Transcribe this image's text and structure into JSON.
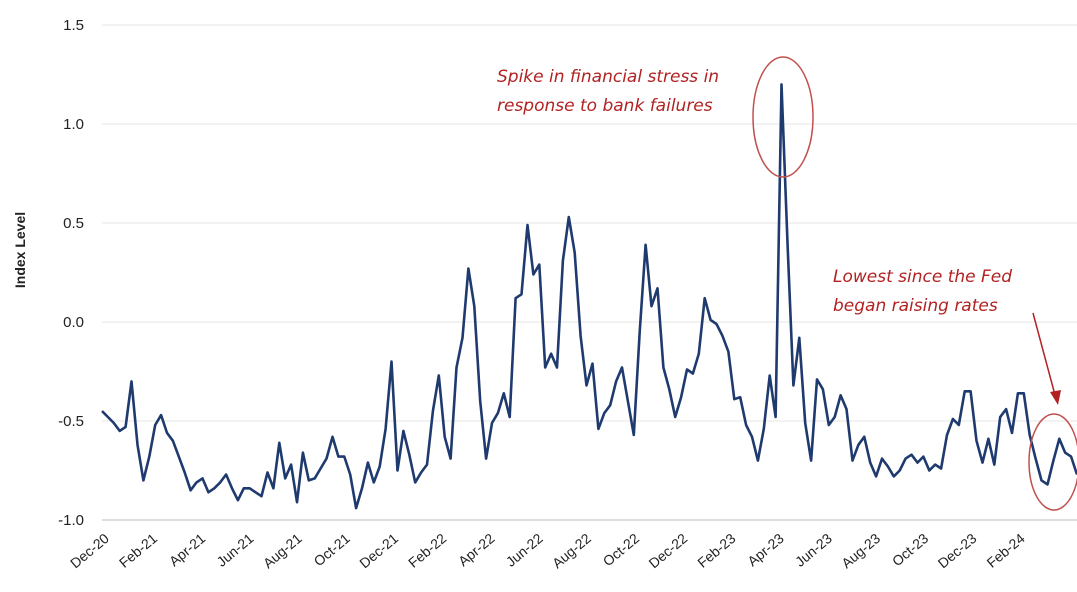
{
  "chart_data": {
    "type": "line",
    "title": "",
    "xlabel": "",
    "ylabel": "Index Level",
    "ylim": [
      -1.0,
      1.5
    ],
    "yticks": [
      "1.5",
      "1.0",
      "0.5",
      "0.0",
      "-0.5",
      "-1.0"
    ],
    "ytick_values": [
      1.5,
      1.0,
      0.5,
      0.0,
      -0.5,
      -1.0
    ],
    "xticks": [
      "Dec-20",
      "Feb-21",
      "Apr-21",
      "Jun-21",
      "Aug-21",
      "Oct-21",
      "Dec-21",
      "Feb-22",
      "Apr-22",
      "Jun-22",
      "Aug-22",
      "Oct-22",
      "Dec-22",
      "Feb-23",
      "Apr-23",
      "Jun-23",
      "Aug-23",
      "Oct-23",
      "Dec-23",
      "Feb-24"
    ],
    "grid": true,
    "line_color": "#1f3a6e",
    "annotation_color": "#b22222",
    "series": [
      {
        "values": [
          -0.45,
          -0.48,
          -0.51,
          -0.55,
          -0.53,
          -0.3,
          -0.62,
          -0.8,
          -0.68,
          -0.52,
          -0.47,
          -0.56,
          -0.6,
          -0.68,
          -0.76,
          -0.85,
          -0.81,
          -0.79,
          -0.86,
          -0.84,
          -0.81,
          -0.77,
          -0.84,
          -0.9,
          -0.84,
          -0.84,
          -0.86,
          -0.88,
          -0.76,
          -0.84,
          -0.61,
          -0.79,
          -0.72,
          -0.91,
          -0.66,
          -0.8,
          -0.79,
          -0.74,
          -0.69,
          -0.58,
          -0.68,
          -0.68,
          -0.77,
          -0.94,
          -0.84,
          -0.71,
          -0.81,
          -0.73,
          -0.54,
          -0.2,
          -0.75,
          -0.55,
          -0.67,
          -0.81,
          -0.76,
          -0.72,
          -0.45,
          -0.27,
          -0.58,
          -0.69,
          -0.23,
          -0.08,
          0.27,
          0.08,
          -0.4,
          -0.69,
          -0.51,
          -0.46,
          -0.36,
          -0.48,
          0.12,
          0.14,
          0.49,
          0.24,
          0.29,
          -0.23,
          -0.16,
          -0.23,
          0.31,
          0.53,
          0.35,
          -0.07,
          -0.32,
          -0.21,
          -0.54,
          -0.46,
          -0.42,
          -0.3,
          -0.23,
          -0.4,
          -0.57,
          -0.05,
          0.39,
          0.08,
          0.17,
          -0.23,
          -0.34,
          -0.48,
          -0.38,
          -0.24,
          -0.26,
          -0.16,
          0.12,
          0.01,
          -0.01,
          -0.07,
          -0.15,
          -0.39,
          -0.38,
          -0.52,
          -0.58,
          -0.7,
          -0.54,
          -0.27,
          -0.48,
          1.2,
          0.4,
          -0.32,
          -0.08,
          -0.51,
          -0.7,
          -0.29,
          -0.34,
          -0.52,
          -0.48,
          -0.37,
          -0.44,
          -0.7,
          -0.62,
          -0.58,
          -0.71,
          -0.78,
          -0.69,
          -0.73,
          -0.78,
          -0.75,
          -0.69,
          -0.67,
          -0.71,
          -0.68,
          -0.75,
          -0.72,
          -0.74,
          -0.57,
          -0.49,
          -0.52,
          -0.35,
          -0.35,
          -0.6,
          -0.71,
          -0.59,
          -0.72,
          -0.48,
          -0.44,
          -0.56,
          -0.36,
          -0.36,
          -0.57,
          -0.69,
          -0.8,
          -0.82,
          -0.7,
          -0.59,
          -0.66,
          -0.68,
          -0.77
        ]
      }
    ]
  },
  "annotations": {
    "spike": {
      "line1": "Spike in financial stress in",
      "line2": "response to bank failures"
    },
    "lowest": {
      "line1": "Lowest since the Fed",
      "line2": "began raising rates"
    }
  }
}
